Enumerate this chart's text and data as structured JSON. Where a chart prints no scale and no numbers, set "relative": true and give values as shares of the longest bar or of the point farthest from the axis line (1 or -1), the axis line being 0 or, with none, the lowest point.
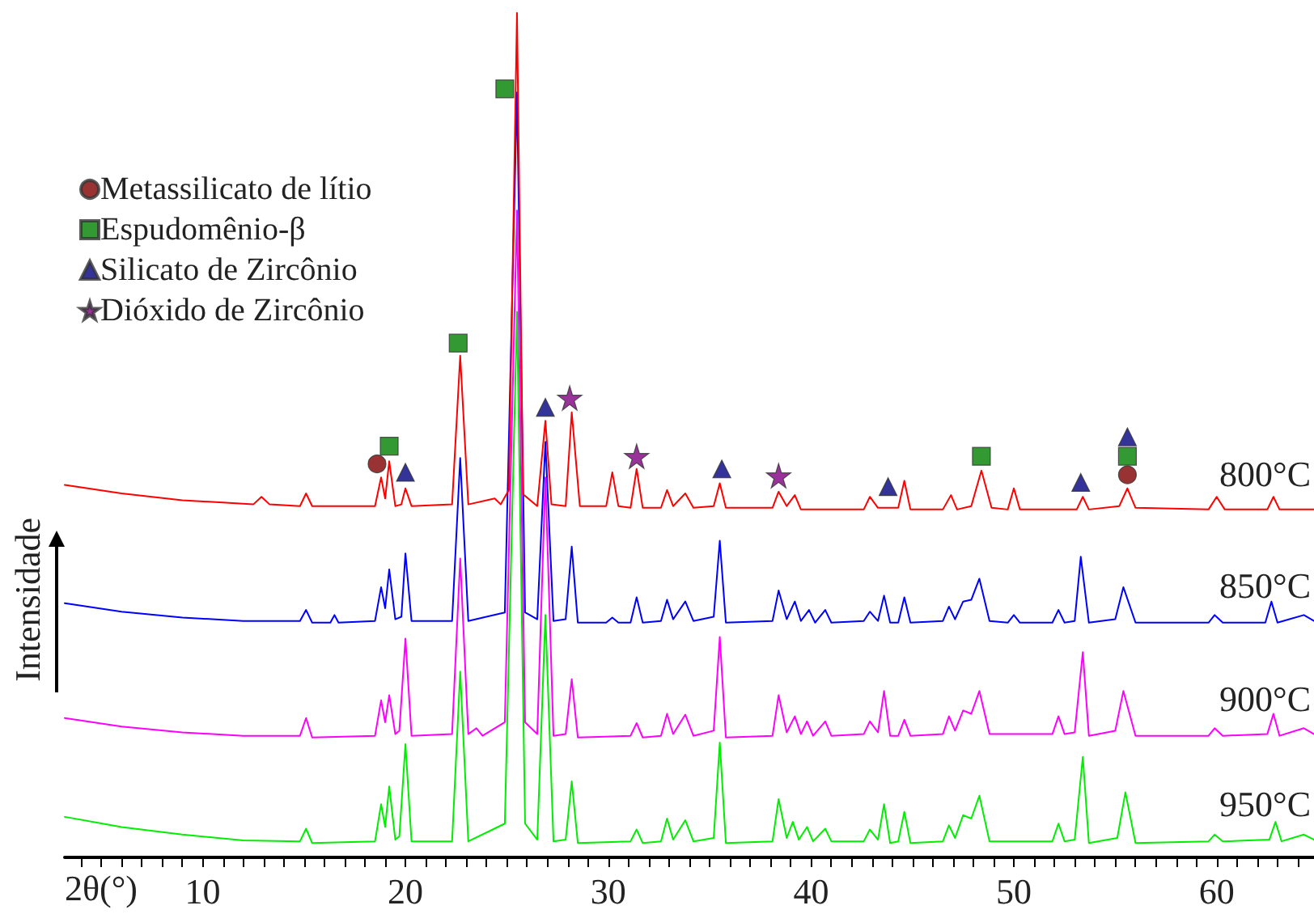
{
  "chart_data": {
    "type": "line",
    "relative": true,
    "xlabel": "2θ(°)",
    "ylabel": "Intensidade",
    "marker": "none",
    "tick_labels": "x",
    "grid": false,
    "legend": "top left",
    "xlim": [
      3.2,
      64.8
    ],
    "xticks": [
      {
        "value": 4,
        "label": null
      },
      {
        "value": 5,
        "label": null
      },
      {
        "value": 6,
        "label": null
      },
      {
        "value": 7,
        "label": null
      },
      {
        "value": 8,
        "label": null
      },
      {
        "value": 9,
        "label": null
      },
      10,
      {
        "value": 11,
        "label": null
      },
      {
        "value": 12,
        "label": null
      },
      {
        "value": 13,
        "label": null
      },
      {
        "value": 14,
        "label": null
      },
      {
        "value": 15,
        "label": null
      },
      {
        "value": 16,
        "label": null
      },
      {
        "value": 17,
        "label": null
      },
      {
        "value": 18,
        "label": null
      },
      {
        "value": 19,
        "label": null
      },
      20,
      {
        "value": 21,
        "label": null
      },
      {
        "value": 22,
        "label": null
      },
      {
        "value": 23,
        "label": null
      },
      {
        "value": 24,
        "label": null
      },
      {
        "value": 25,
        "label": null
      },
      {
        "value": 26,
        "label": null
      },
      {
        "value": 27,
        "label": null
      },
      {
        "value": 28,
        "label": null
      },
      {
        "value": 29,
        "label": null
      },
      30,
      {
        "value": 31,
        "label": null
      },
      {
        "value": 32,
        "label": null
      },
      {
        "value": 33,
        "label": null
      },
      {
        "value": 34,
        "label": null
      },
      {
        "value": 35,
        "label": null
      },
      {
        "value": 36,
        "label": null
      },
      {
        "value": 37,
        "label": null
      },
      {
        "value": 38,
        "label": null
      },
      {
        "value": 39,
        "label": null
      },
      40,
      {
        "value": 41,
        "label": null
      },
      {
        "value": 42,
        "label": null
      },
      {
        "value": 43,
        "label": null
      },
      {
        "value": 44,
        "label": null
      },
      {
        "value": 45,
        "label": null
      },
      {
        "value": 46,
        "label": null
      },
      {
        "value": 47,
        "label": null
      },
      {
        "value": 48,
        "label": null
      },
      {
        "value": 49,
        "label": null
      },
      50,
      {
        "value": 51,
        "label": null
      },
      {
        "value": 52,
        "label": null
      },
      {
        "value": 53,
        "label": null
      },
      {
        "value": 54,
        "label": null
      },
      {
        "value": 55,
        "label": null
      },
      {
        "value": 56,
        "label": null
      },
      {
        "value": 57,
        "label": null
      },
      {
        "value": 58,
        "label": null
      },
      {
        "value": 59,
        "label": null
      },
      60,
      {
        "value": 61,
        "label": null
      },
      {
        "value": 62,
        "label": null
      },
      {
        "value": 63,
        "label": null
      },
      {
        "value": 64,
        "label": null
      }
    ],
    "series": [
      {
        "name": "800°C",
        "color": "#ff0000",
        "x": [
          3.2,
          6,
          9,
          12.5,
          12.9,
          13.3,
          14.8,
          15.1,
          15.4,
          18.5,
          18.8,
          19.0,
          19.2,
          19.5,
          19.8,
          20.0,
          20.3,
          22.3,
          22.7,
          23.1,
          24.4,
          24.7,
          25.1,
          25.5,
          25.8,
          26.5,
          26.9,
          27.2,
          27.9,
          28.2,
          28.6,
          29.9,
          30.2,
          30.5,
          31.1,
          31.4,
          31.7,
          32.6,
          32.9,
          33.2,
          33.8,
          34.2,
          35.2,
          35.5,
          35.8,
          38.1,
          38.4,
          38.8,
          39.2,
          39.5,
          42.6,
          42.9,
          43.3,
          44.3,
          44.6,
          44.9,
          46.5,
          46.9,
          47.2,
          47.9,
          48.4,
          48.9,
          49.7,
          50.0,
          50.3,
          53.1,
          53.4,
          53.7,
          55.2,
          55.6,
          56.0,
          59.6,
          60.0,
          60.4,
          62.5,
          62.8,
          63.1,
          64.8
        ],
        "values": [
          0.441,
          0.431,
          0.423,
          0.418,
          0.427,
          0.418,
          0.416,
          0.431,
          0.416,
          0.416,
          0.45,
          0.425,
          0.469,
          0.416,
          0.418,
          0.437,
          0.416,
          0.418,
          0.594,
          0.418,
          0.425,
          0.418,
          0.435,
          1.0,
          0.43,
          0.416,
          0.517,
          0.418,
          0.416,
          0.527,
          0.416,
          0.416,
          0.456,
          0.416,
          0.414,
          0.46,
          0.414,
          0.414,
          0.435,
          0.416,
          0.431,
          0.414,
          0.416,
          0.443,
          0.414,
          0.414,
          0.433,
          0.416,
          0.429,
          0.412,
          0.412,
          0.427,
          0.414,
          0.414,
          0.446,
          0.412,
          0.412,
          0.429,
          0.412,
          0.416,
          0.458,
          0.414,
          0.412,
          0.437,
          0.412,
          0.412,
          0.427,
          0.412,
          0.416,
          0.437,
          0.414,
          0.412,
          0.427,
          0.412,
          0.412,
          0.427,
          0.412,
          0.412
        ]
      },
      {
        "name": "850°C",
        "color": "#0000ff",
        "x": [
          3.2,
          6,
          9,
          12,
          14.8,
          15.1,
          15.4,
          16.3,
          16.5,
          16.7,
          18.5,
          18.8,
          19.0,
          19.2,
          19.5,
          19.8,
          20.0,
          20.3,
          22.3,
          22.7,
          23.1,
          24.9,
          25.5,
          25.9,
          26.5,
          26.9,
          27.3,
          27.9,
          28.2,
          28.5,
          29.9,
          30.2,
          30.5,
          31.1,
          31.4,
          31.7,
          32.6,
          32.9,
          33.2,
          33.8,
          34.2,
          35.2,
          35.5,
          35.8,
          38.1,
          38.4,
          38.8,
          39.2,
          39.5,
          39.9,
          40.2,
          40.7,
          41.0,
          42.6,
          42.9,
          43.3,
          43.6,
          43.9,
          44.3,
          44.6,
          44.9,
          46.5,
          46.8,
          47.1,
          47.5,
          47.9,
          48.3,
          48.8,
          49.7,
          50.0,
          50.3,
          51.9,
          52.2,
          52.5,
          53.0,
          53.3,
          53.7,
          55.0,
          55.4,
          56.0,
          59.6,
          59.9,
          60.3,
          62.4,
          62.7,
          63.0,
          64.3,
          64.8
        ],
        "values": [
          0.301,
          0.291,
          0.284,
          0.28,
          0.28,
          0.293,
          0.278,
          0.278,
          0.287,
          0.278,
          0.28,
          0.32,
          0.295,
          0.341,
          0.282,
          0.285,
          0.36,
          0.28,
          0.28,
          0.473,
          0.28,
          0.29,
          0.906,
          0.29,
          0.282,
          0.492,
          0.28,
          0.282,
          0.368,
          0.278,
          0.278,
          0.284,
          0.278,
          0.278,
          0.308,
          0.278,
          0.28,
          0.305,
          0.282,
          0.303,
          0.28,
          0.285,
          0.375,
          0.278,
          0.28,
          0.316,
          0.282,
          0.303,
          0.28,
          0.293,
          0.278,
          0.293,
          0.278,
          0.28,
          0.291,
          0.28,
          0.31,
          0.278,
          0.278,
          0.308,
          0.278,
          0.28,
          0.297,
          0.282,
          0.303,
          0.305,
          0.33,
          0.28,
          0.278,
          0.287,
          0.278,
          0.278,
          0.293,
          0.278,
          0.28,
          0.356,
          0.278,
          0.282,
          0.32,
          0.278,
          0.278,
          0.287,
          0.278,
          0.278,
          0.303,
          0.278,
          0.287,
          0.28
        ]
      },
      {
        "name": "900°C",
        "color": "#ff00ff",
        "x": [
          3.2,
          6,
          9,
          12,
          14.8,
          15.1,
          15.4,
          18.5,
          18.8,
          19.0,
          19.2,
          19.5,
          19.7,
          20.0,
          20.3,
          22.3,
          22.7,
          23.1,
          23.5,
          23.8,
          24.9,
          25.5,
          25.9,
          26.5,
          26.9,
          27.3,
          27.9,
          28.2,
          28.5,
          31.1,
          31.4,
          31.7,
          32.6,
          32.9,
          33.2,
          33.8,
          34.2,
          35.2,
          35.5,
          35.8,
          38.1,
          38.4,
          38.8,
          39.2,
          39.5,
          39.8,
          40.1,
          40.7,
          41.0,
          42.6,
          42.9,
          43.3,
          43.6,
          43.9,
          44.3,
          44.6,
          44.9,
          46.5,
          46.8,
          47.1,
          47.5,
          47.9,
          48.3,
          48.8,
          51.9,
          52.2,
          52.5,
          53.0,
          53.4,
          53.7,
          55.0,
          55.4,
          56.0,
          59.6,
          59.9,
          60.3,
          62.5,
          62.8,
          63.1,
          64.3,
          64.8
        ],
        "values": [
          0.165,
          0.155,
          0.148,
          0.144,
          0.144,
          0.165,
          0.142,
          0.144,
          0.186,
          0.16,
          0.192,
          0.146,
          0.15,
          0.259,
          0.144,
          0.146,
          0.354,
          0.146,
          0.153,
          0.144,
          0.16,
          0.766,
          0.16,
          0.146,
          0.45,
          0.144,
          0.146,
          0.211,
          0.142,
          0.144,
          0.159,
          0.142,
          0.144,
          0.17,
          0.146,
          0.169,
          0.144,
          0.15,
          0.261,
          0.142,
          0.144,
          0.192,
          0.148,
          0.167,
          0.146,
          0.161,
          0.144,
          0.161,
          0.144,
          0.146,
          0.161,
          0.148,
          0.197,
          0.144,
          0.144,
          0.163,
          0.144,
          0.146,
          0.167,
          0.15,
          0.174,
          0.17,
          0.197,
          0.146,
          0.146,
          0.167,
          0.146,
          0.148,
          0.243,
          0.144,
          0.15,
          0.197,
          0.144,
          0.144,
          0.153,
          0.144,
          0.146,
          0.17,
          0.144,
          0.153,
          0.146
        ]
      },
      {
        "name": "950°C",
        "color": "#00ee00",
        "x": [
          3.2,
          6,
          9,
          12,
          14.8,
          15.1,
          15.4,
          18.5,
          18.8,
          19.0,
          19.2,
          19.5,
          19.7,
          20.0,
          20.3,
          22.3,
          22.7,
          23.1,
          24.9,
          25.5,
          25.9,
          26.5,
          26.9,
          27.3,
          27.9,
          28.2,
          28.5,
          31.1,
          31.4,
          31.7,
          32.6,
          32.9,
          33.2,
          33.8,
          34.2,
          35.2,
          35.5,
          35.8,
          38.1,
          38.4,
          38.8,
          39.1,
          39.4,
          39.8,
          40.1,
          40.7,
          41.0,
          42.6,
          42.9,
          43.3,
          43.6,
          43.9,
          44.3,
          44.6,
          44.9,
          46.5,
          46.8,
          47.1,
          47.5,
          47.9,
          48.3,
          48.8,
          51.9,
          52.2,
          52.5,
          53.0,
          53.4,
          53.7,
          55.1,
          55.5,
          56.0,
          59.6,
          59.9,
          60.3,
          62.6,
          62.9,
          63.2,
          64.3,
          64.8
        ],
        "values": [
          0.048,
          0.036,
          0.027,
          0.02,
          0.019,
          0.034,
          0.017,
          0.019,
          0.063,
          0.036,
          0.084,
          0.021,
          0.025,
          0.134,
          0.019,
          0.019,
          0.22,
          0.019,
          0.04,
          0.646,
          0.04,
          0.021,
          0.287,
          0.019,
          0.021,
          0.09,
          0.017,
          0.019,
          0.033,
          0.017,
          0.019,
          0.046,
          0.021,
          0.044,
          0.019,
          0.023,
          0.136,
          0.017,
          0.019,
          0.069,
          0.023,
          0.042,
          0.021,
          0.036,
          0.019,
          0.034,
          0.019,
          0.019,
          0.033,
          0.021,
          0.063,
          0.017,
          0.019,
          0.054,
          0.017,
          0.019,
          0.038,
          0.023,
          0.05,
          0.046,
          0.073,
          0.019,
          0.019,
          0.04,
          0.019,
          0.021,
          0.119,
          0.017,
          0.023,
          0.077,
          0.017,
          0.019,
          0.027,
          0.019,
          0.021,
          0.042,
          0.019,
          0.027,
          0.021
        ]
      },
      {
        "name": "Metassilicato de lítio",
        "type": "scatter",
        "marker": "circle",
        "color": "#800000",
        "x": [
          18.6,
          55.6
        ],
        "values": [
          0.466,
          0.453
        ]
      },
      {
        "name": "Espudomênio-β",
        "type": "scatter",
        "marker": "square",
        "color": "#008000",
        "x": [
          19.2,
          22.6,
          24.9,
          48.4,
          55.6
        ],
        "values": [
          0.487,
          0.609,
          0.91,
          0.475,
          0.475
        ]
      },
      {
        "name": "Silicato de Zircônio",
        "type": "scatter",
        "marker": "triangle",
        "color": "#000080",
        "x": [
          20.0,
          26.9,
          35.6,
          43.8,
          53.3,
          55.6
        ],
        "values": [
          0.456,
          0.533,
          0.46,
          0.439,
          0.444,
          0.498
        ]
      },
      {
        "name": "Dióxido de Zircônio",
        "type": "scatter",
        "marker": "star",
        "color": "#800080",
        "x": [
          28.1,
          31.4,
          38.4
        ],
        "values": [
          0.544,
          0.475,
          0.452
        ]
      }
    ]
  }
}
